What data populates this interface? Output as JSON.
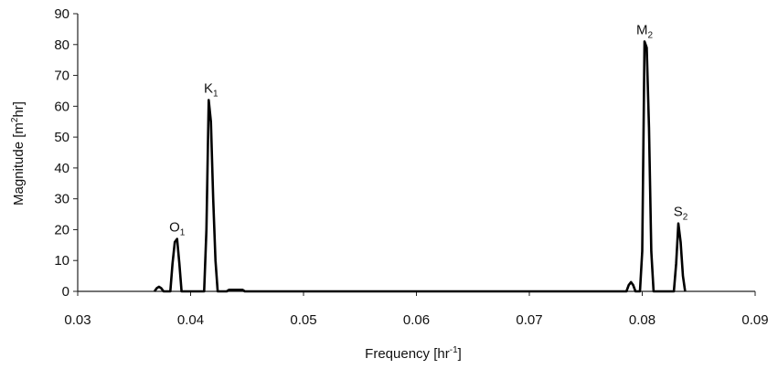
{
  "chart_data": {
    "type": "line",
    "title": "",
    "xlabel": "Frequency",
    "xlabel_unit_prefix": "[hr",
    "xlabel_unit_sup": "-1",
    "xlabel_unit_suffix": "]",
    "ylabel": "Magnitude",
    "ylabel_unit_prefix": "[m",
    "ylabel_unit_sup": "2",
    "ylabel_unit_suffix": "hr]",
    "xlim": [
      0.03,
      0.09
    ],
    "ylim": [
      0,
      90
    ],
    "xticks": [
      "0.03",
      "0.04",
      "0.05",
      "0.06",
      "0.07",
      "0.08",
      "0.09"
    ],
    "yticks": [
      "0",
      "10",
      "20",
      "30",
      "40",
      "50",
      "60",
      "70",
      "80",
      "90"
    ],
    "grid": false,
    "legend": "none",
    "series": [
      {
        "x": [
          0.0368,
          0.037,
          0.0372,
          0.0374,
          0.0376,
          0.0382,
          0.0384,
          0.0386,
          0.0388,
          0.039,
          0.0392,
          0.0412,
          0.0414,
          0.0416,
          0.0418,
          0.042,
          0.0422,
          0.0424,
          0.0432,
          0.0434,
          0.0446,
          0.0448,
          0.0786,
          0.0788,
          0.079,
          0.0792,
          0.0794,
          0.0798,
          0.08,
          0.0802,
          0.0804,
          0.0806,
          0.0808,
          0.081,
          0.0828,
          0.083,
          0.0832,
          0.0834,
          0.0836,
          0.0838
        ],
        "y": [
          0,
          1,
          1.5,
          1,
          0,
          0,
          9,
          16,
          17,
          9,
          0,
          0,
          20,
          62,
          55,
          30,
          10,
          0,
          0,
          0.5,
          0.5,
          0,
          0,
          2,
          3,
          2,
          0,
          0,
          13,
          81,
          79,
          53,
          13,
          0,
          0,
          9,
          22,
          16,
          5,
          0
        ]
      }
    ],
    "annotations": [
      {
        "text": "O",
        "sub": "1",
        "x": 0.0388,
        "y": 17
      },
      {
        "text": "K",
        "sub": "1",
        "x": 0.0418,
        "y": 62
      },
      {
        "text": "M",
        "sub": "2",
        "x": 0.0802,
        "y": 81
      },
      {
        "text": "S",
        "sub": "2",
        "x": 0.0834,
        "y": 22
      }
    ]
  },
  "colors": {
    "line": "#000000",
    "axis": "#222222"
  }
}
